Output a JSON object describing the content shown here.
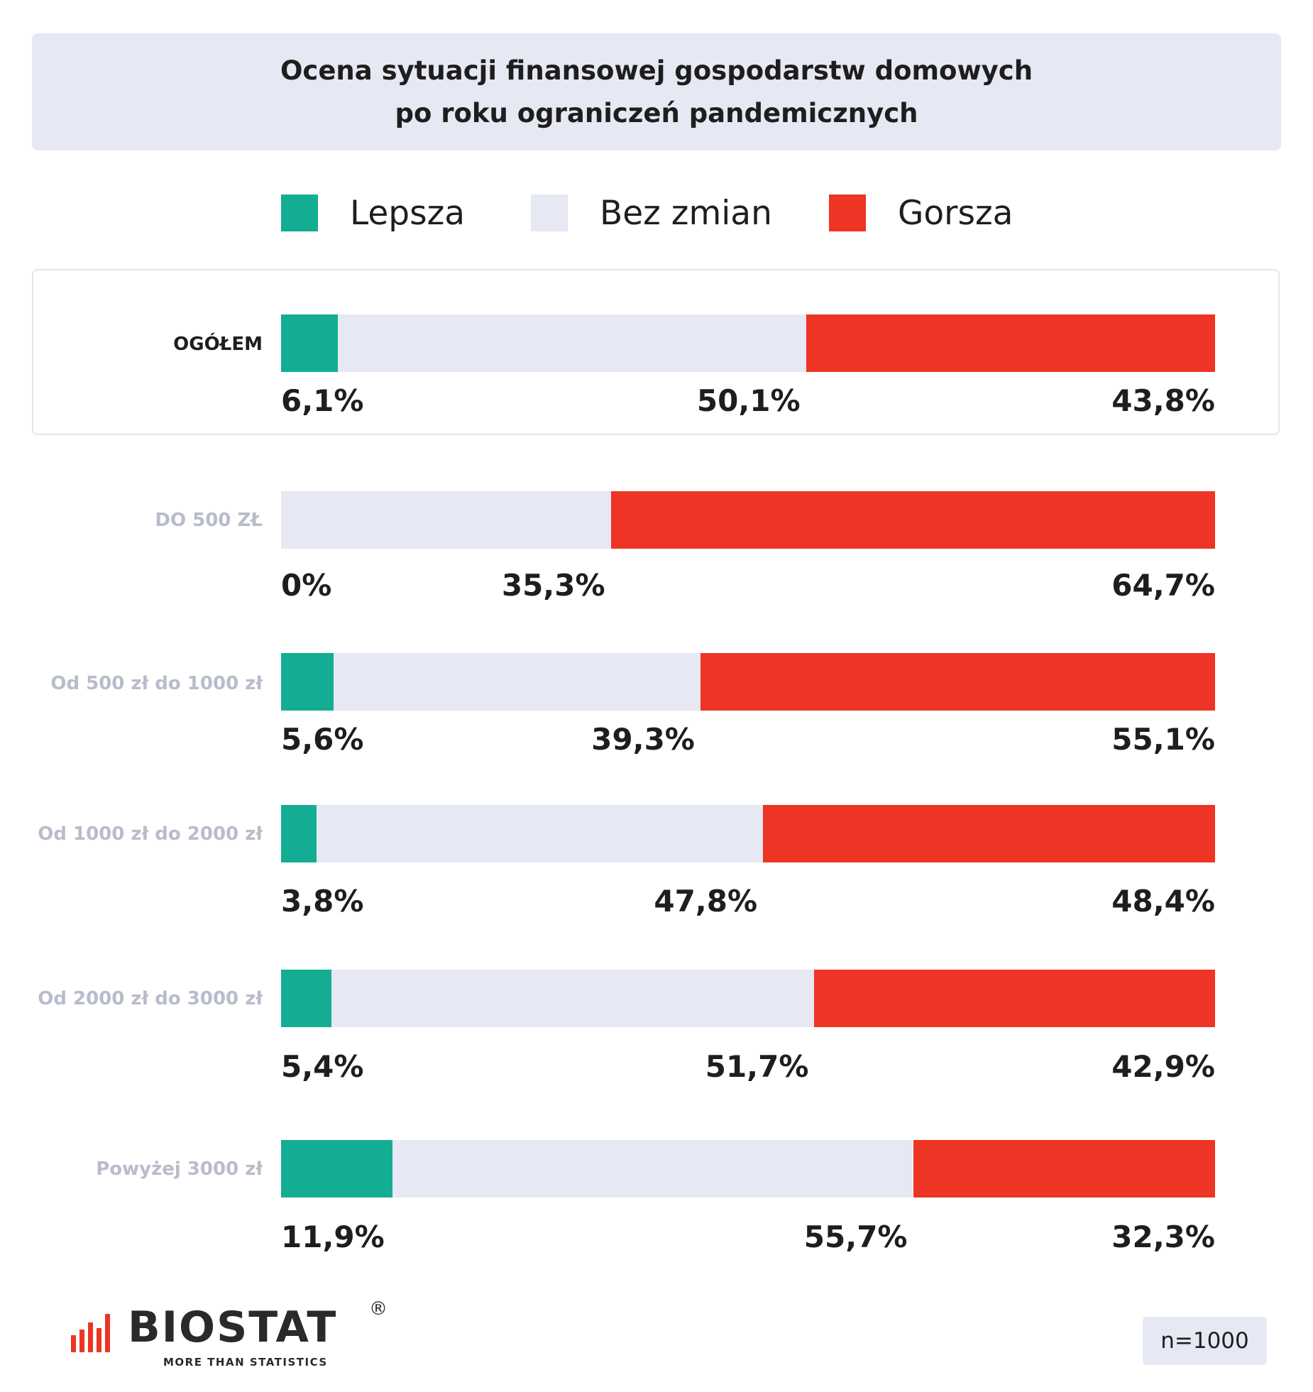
{
  "title": {
    "line1": "Ocena sytuacji finansowej gospodarstw domowych",
    "line2": "po roku ograniczeń pandemicznych"
  },
  "legend": [
    "Lepsza",
    "Bez zmian",
    "Gorsza"
  ],
  "colors": {
    "lepsza": "#13ad93",
    "bez_zmian": "#e6e8f3",
    "gorsza": "#ee3424"
  },
  "chart_data": {
    "type": "bar",
    "orientation": "horizontal",
    "stacked": true,
    "categories": [
      "OGÓŁEM",
      "DO 500 ZŁ",
      "Od 500 zł do 1000 zł",
      "Od 1000 zł do 2000 zł",
      "Od 2000 zł do 3000 zł",
      "Powyżej 3000 zł"
    ],
    "series": [
      {
        "name": "Lepsza",
        "values": [
          6.1,
          0,
          5.6,
          3.8,
          5.4,
          11.9
        ]
      },
      {
        "name": "Bez zmian",
        "values": [
          50.1,
          35.3,
          39.3,
          47.8,
          51.7,
          55.7
        ]
      },
      {
        "name": "Gorsza",
        "values": [
          43.8,
          64.7,
          55.1,
          48.4,
          42.9,
          32.3
        ]
      }
    ],
    "value_labels": [
      [
        "6,1%",
        "50,1%",
        "43,8%"
      ],
      [
        "0%",
        "35,3%",
        "64,7%"
      ],
      [
        "5,6%",
        "39,3%",
        "55,1%"
      ],
      [
        "3,8%",
        "47,8%",
        "48,4%"
      ],
      [
        "5,4%",
        "51,7%",
        "42,9%"
      ],
      [
        "11,9%",
        "55,7%",
        "32,3%"
      ]
    ],
    "title": "Ocena sytuacji finansowej gospodarstw domowych po roku ograniczeń pandemicznych",
    "xlim": [
      0,
      100
    ],
    "grid": false,
    "legend_position": "top"
  },
  "footer": {
    "logo_text": "BIOSTAT",
    "logo_reg": "®",
    "logo_tagline": "MORE THAN STATISTICS",
    "n_label": "n=1000"
  }
}
